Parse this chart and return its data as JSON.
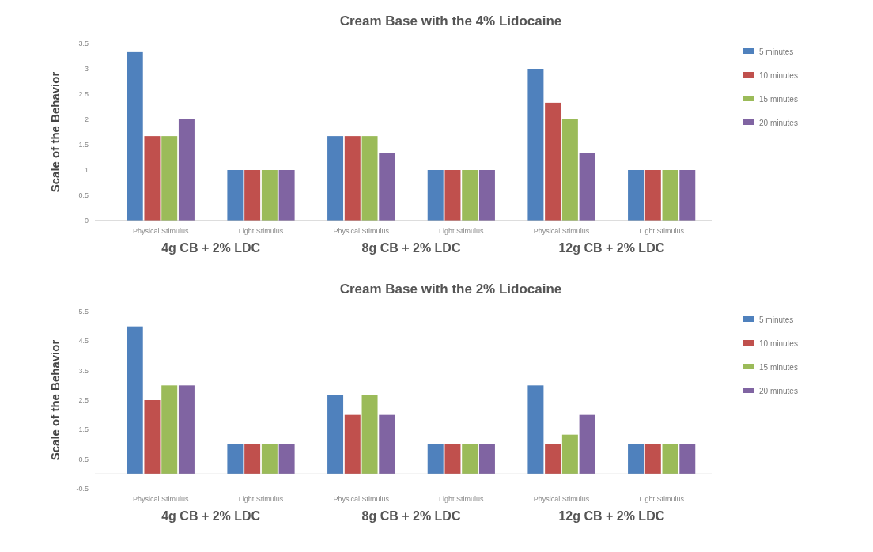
{
  "chart_data": [
    {
      "type": "bar",
      "title": "Cream Base with the 4% Lidocaine",
      "ylabel": "Scale of the Behavior",
      "categories": [
        "Physical Stimulus",
        "Light Stimulus",
        "Physical Stimulus",
        "Light Stimulus",
        "Physical Stimulus",
        "Light Stimulus"
      ],
      "series": [
        {
          "name": "5 minutes",
          "color": "#4f81bd",
          "values": [
            3.33,
            1,
            1.67,
            1,
            3,
            1
          ]
        },
        {
          "name": "10 minutes",
          "color": "#c0504d",
          "values": [
            1.67,
            1,
            1.67,
            1,
            2.33,
            1
          ]
        },
        {
          "name": "15 minutes",
          "color": "#9bbb59",
          "values": [
            1.67,
            1,
            1.67,
            1,
            2,
            1
          ]
        },
        {
          "name": "20 minutes",
          "color": "#8064a2",
          "values": [
            2,
            1,
            1.33,
            1,
            1.33,
            1
          ]
        }
      ],
      "ylim": [
        0,
        3.5
      ],
      "yticks": [
        0,
        0.5,
        1,
        1.5,
        2,
        2.5,
        3,
        3.5
      ],
      "grid": false,
      "legend": "top right",
      "annotations": [
        "4g CB + 2% LDC",
        "8g CB + 2% LDC",
        "12g CB + 2% LDC"
      ]
    },
    {
      "type": "bar",
      "title": "Cream Base with the 2% Lidocaine",
      "ylabel": "Scale of the Behavior",
      "categories": [
        "Physical Stimulus",
        "Light Stimulus",
        "Physical Stimulus",
        "Light Stimulus",
        "Physical Stimulus",
        "Light Stimulus"
      ],
      "series": [
        {
          "name": "5 minutes",
          "color": "#4f81bd",
          "values": [
            5,
            1,
            2.67,
            1,
            3,
            1
          ]
        },
        {
          "name": "10 minutes",
          "color": "#c0504d",
          "values": [
            2.5,
            1,
            2,
            1,
            1,
            1
          ]
        },
        {
          "name": "15 minutes",
          "color": "#9bbb59",
          "values": [
            3,
            1,
            2.67,
            1,
            1.33,
            1
          ]
        },
        {
          "name": "20 minutes",
          "color": "#8064a2",
          "values": [
            3,
            1,
            2,
            1,
            2,
            1
          ]
        }
      ],
      "ylim": [
        -0.5,
        5.5
      ],
      "yticks": [
        -0.5,
        0.5,
        1.5,
        2.5,
        3.5,
        4.5,
        5.5
      ],
      "grid": false,
      "legend": "top right",
      "annotations": [
        "4g CB + 2% LDC",
        "8g CB + 2% LDC",
        "12g CB + 2% LDC"
      ]
    }
  ]
}
